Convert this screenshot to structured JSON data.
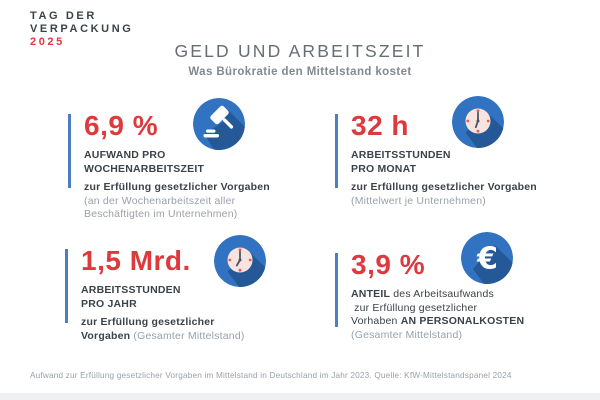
{
  "colors": {
    "red": "#de3a3e",
    "blue": "#3173c1",
    "shadow": "#255896",
    "bar": "#4d7ec2",
    "dark": "#3b4248",
    "gray": "#9aa1a8",
    "title": "#666e75",
    "subtitle": "#82898f",
    "face": "#f8e3de",
    "tick": "#e25c5c",
    "hand": "#4a5663",
    "band": "#eef0f1"
  },
  "logo": {
    "line1": "TAG DER",
    "line2": "VERPACKUNG",
    "year": "2025"
  },
  "header": {
    "title": "GELD UND ARBEITSZEIT",
    "subtitle": "Was Bürokratie den Mittelstand kostet"
  },
  "stats": [
    {
      "id": "weekly-effort",
      "value": "6,9 %",
      "icon": "gavel-icon",
      "lines": [
        {
          "segs": [
            {
              "t": "AUFWAND PRO",
              "s": "b"
            }
          ]
        },
        {
          "segs": [
            {
              "t": "WOCHENARBEITSZEIT",
              "s": "b"
            }
          ]
        },
        {
          "gap": true,
          "segs": [
            {
              "t": "zur Erfüllung gesetzlicher Vorgaben",
              "s": "m"
            }
          ]
        },
        {
          "segs": [
            {
              "t": "(an der Wochenarbeitszeit aller",
              "s": "g"
            }
          ]
        },
        {
          "segs": [
            {
              "t": "Beschäftigten im Unternehmen)",
              "s": "g"
            }
          ]
        }
      ]
    },
    {
      "id": "monthly-hours",
      "value": "32 h",
      "icon": "clock-icon",
      "lines": [
        {
          "segs": [
            {
              "t": "ARBEITSSTUNDEN",
              "s": "b"
            }
          ]
        },
        {
          "segs": [
            {
              "t": "PRO MONAT",
              "s": "b"
            }
          ]
        },
        {
          "gap": true,
          "segs": [
            {
              "t": "zur Erfüllung gesetzlicher Vorgaben",
              "s": "m"
            }
          ]
        },
        {
          "segs": [
            {
              "t": "(Mittelwert je Unternehmen)",
              "s": "g"
            }
          ]
        }
      ]
    },
    {
      "id": "yearly-hours",
      "value": "1,5 Mrd.",
      "icon": "clock-icon",
      "lines": [
        {
          "segs": [
            {
              "t": "ARBEITSSTUNDEN",
              "s": "b"
            }
          ]
        },
        {
          "segs": [
            {
              "t": "PRO JAHR",
              "s": "b"
            }
          ]
        },
        {
          "gap": true,
          "segs": [
            {
              "t": "zur Erfüllung gesetzlicher",
              "s": "m"
            }
          ]
        },
        {
          "segs": [
            {
              "t": "Vorgaben ",
              "s": "m"
            },
            {
              "t": "(Gesamter Mittelstand)",
              "s": "g"
            }
          ]
        }
      ]
    },
    {
      "id": "personnel-cost-share",
      "value": "3,9 %",
      "icon": "euro-icon",
      "icon_glyph": "€",
      "lines": [
        {
          "segs": [
            {
              "t": "ANTEIL",
              "s": "b"
            },
            {
              "t": " des Arbeitsaufwands",
              "s": "r"
            }
          ]
        },
        {
          "segs": [
            {
              "t": " zur Erfüllung gesetzlicher",
              "s": "r"
            }
          ]
        },
        {
          "segs": [
            {
              "t": "Vorhaben ",
              "s": "r"
            },
            {
              "t": "AN PERSONALKOSTEN",
              "s": "b"
            }
          ]
        },
        {
          "segs": [
            {
              "t": "(Gesamter Mittelstand)",
              "s": "g"
            }
          ]
        }
      ]
    }
  ],
  "footer": {
    "note": "Aufwand zur Erfüllung gesetzlicher Vorgaben im Mittelstand in Deutschland im Jahr 2023. Quelle: KfW-Mittelstandspanel 2024"
  }
}
